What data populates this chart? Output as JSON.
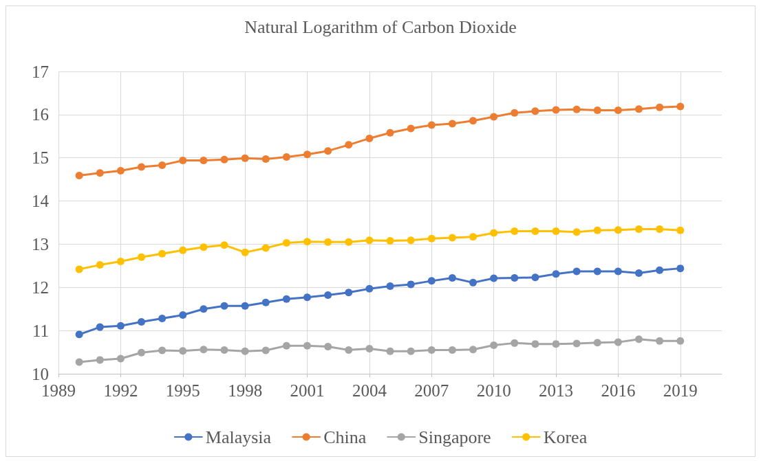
{
  "chart_data": {
    "type": "line",
    "title": "Natural Logarithm of Carbon Dioxide",
    "x": [
      1990,
      1991,
      1992,
      1993,
      1994,
      1995,
      1996,
      1997,
      1998,
      1999,
      2000,
      2001,
      2002,
      2003,
      2004,
      2005,
      2006,
      2007,
      2008,
      2009,
      2010,
      2011,
      2012,
      2013,
      2014,
      2015,
      2016,
      2017,
      2018,
      2019
    ],
    "series": [
      {
        "name": "Malaysia",
        "color": "#4472c4",
        "values": [
          10.91,
          11.08,
          11.11,
          11.2,
          11.28,
          11.36,
          11.5,
          11.57,
          11.57,
          11.65,
          11.73,
          11.77,
          11.82,
          11.88,
          11.97,
          12.03,
          12.07,
          12.15,
          12.22,
          12.11,
          12.21,
          12.22,
          12.23,
          12.31,
          12.37,
          12.37,
          12.37,
          12.33,
          12.4,
          12.44
        ]
      },
      {
        "name": "China",
        "color": "#ed7d31",
        "values": [
          14.59,
          14.65,
          14.7,
          14.79,
          14.83,
          14.94,
          14.94,
          14.96,
          14.99,
          14.97,
          15.02,
          15.08,
          15.16,
          15.3,
          15.45,
          15.58,
          15.68,
          15.76,
          15.79,
          15.86,
          15.95,
          16.04,
          16.08,
          16.11,
          16.12,
          16.1,
          16.1,
          16.13,
          16.17,
          16.19
        ]
      },
      {
        "name": "Singapore",
        "color": "#a5a5a5",
        "values": [
          10.27,
          10.32,
          10.35,
          10.49,
          10.54,
          10.53,
          10.56,
          10.55,
          10.52,
          10.54,
          10.65,
          10.65,
          10.63,
          10.55,
          10.58,
          10.52,
          10.52,
          10.55,
          10.55,
          10.56,
          10.66,
          10.71,
          10.69,
          10.69,
          10.7,
          10.72,
          10.73,
          10.8,
          10.76,
          10.76
        ]
      },
      {
        "name": "Korea",
        "color": "#ffc000",
        "values": [
          12.42,
          12.52,
          12.6,
          12.7,
          12.78,
          12.86,
          12.93,
          12.98,
          12.81,
          12.91,
          13.03,
          13.06,
          13.05,
          13.05,
          13.09,
          13.08,
          13.09,
          13.13,
          13.15,
          13.17,
          13.26,
          13.3,
          13.3,
          13.3,
          13.28,
          13.32,
          13.33,
          13.35,
          13.35,
          13.32
        ]
      }
    ],
    "xlim": [
      1989,
      2021
    ],
    "xticks": [
      1989,
      1992,
      1995,
      1998,
      2001,
      2004,
      2007,
      2010,
      2013,
      2016,
      2019
    ],
    "ylim": [
      10,
      17
    ],
    "yticks": [
      10,
      11,
      12,
      13,
      14,
      15,
      16,
      17
    ],
    "grid": true,
    "legend": "bottom",
    "marker": "circle",
    "line_style": "solid"
  }
}
